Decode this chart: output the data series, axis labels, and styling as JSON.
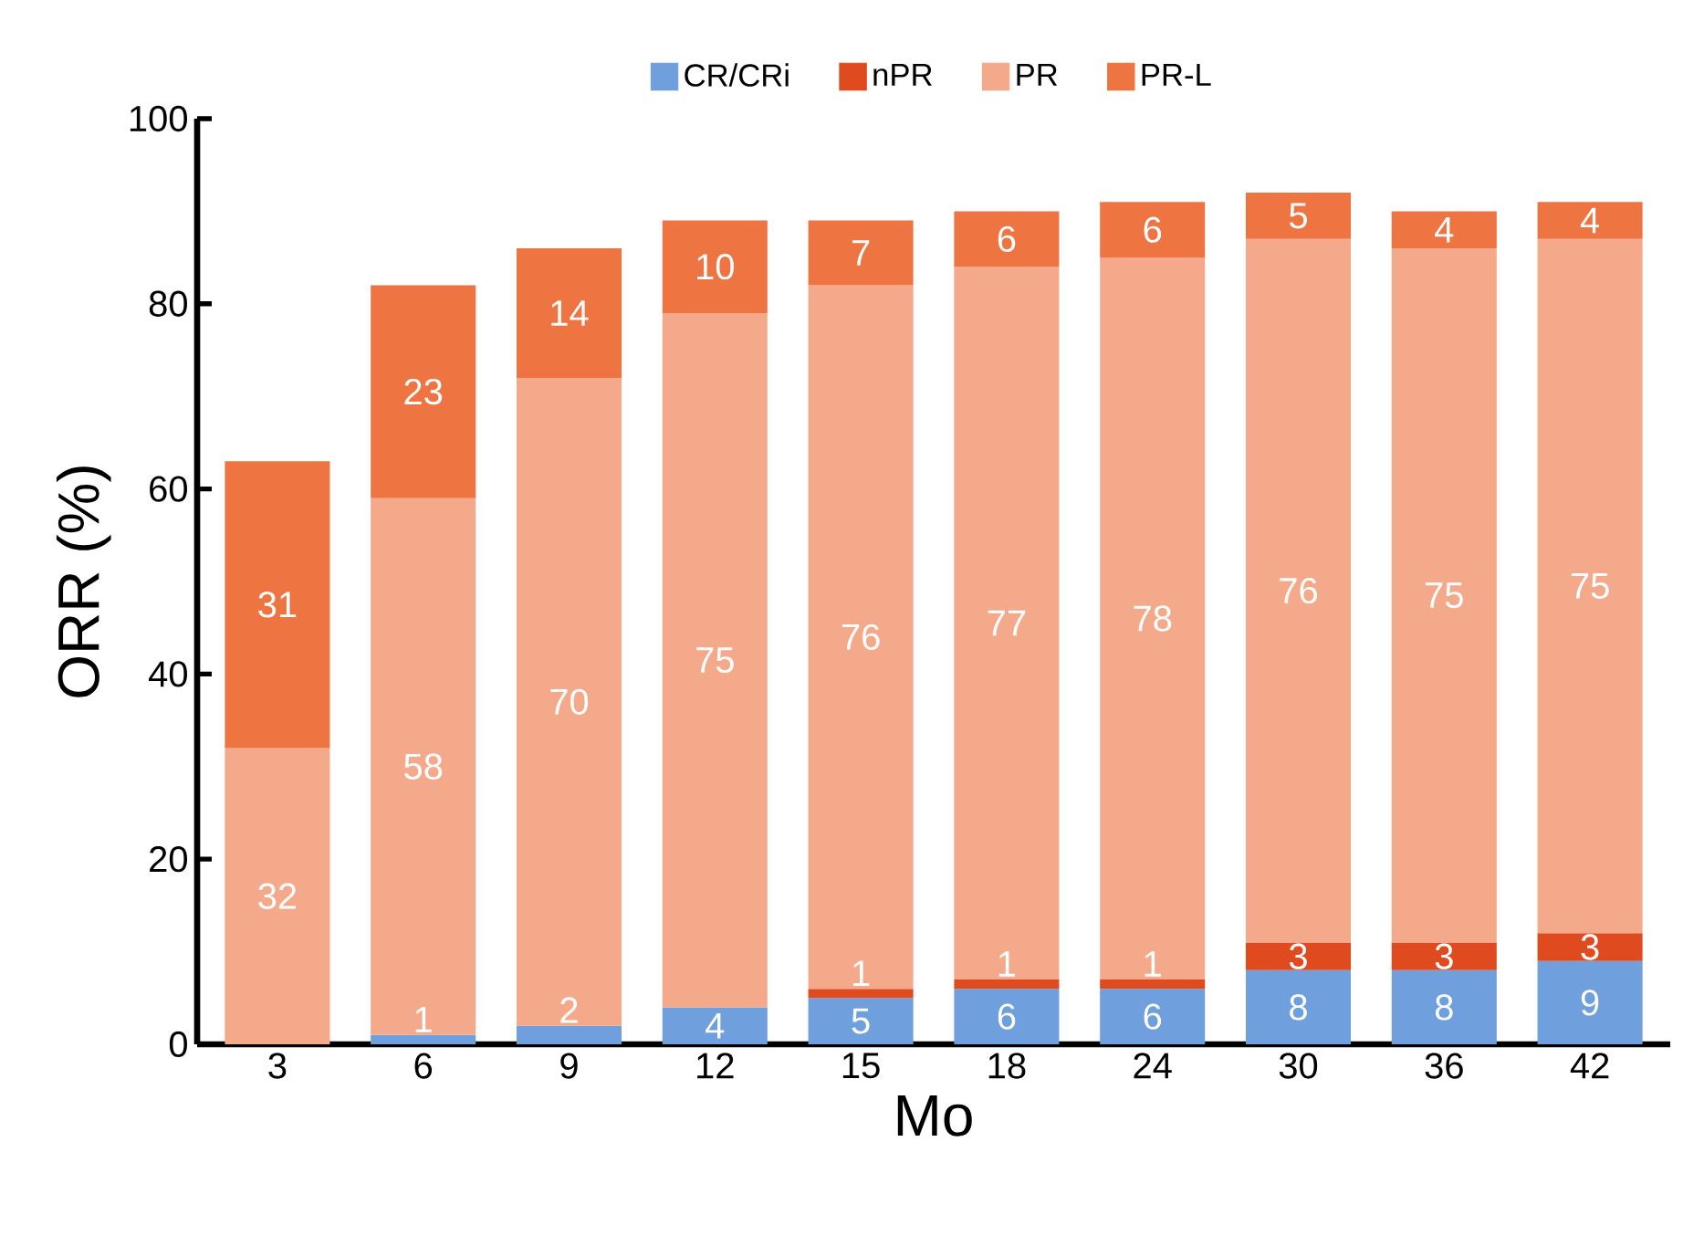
{
  "chart_data": {
    "type": "bar",
    "stacked": true,
    "xlabel": "Mo",
    "ylabel": "ORR (%)",
    "categories": [
      "3",
      "6",
      "9",
      "12",
      "15",
      "18",
      "24",
      "30",
      "36",
      "42"
    ],
    "series": [
      {
        "name": "CR/CRi",
        "color": "#6f9fdc",
        "values": [
          null,
          1,
          2,
          4,
          5,
          6,
          6,
          8,
          8,
          9
        ]
      },
      {
        "name": "nPR",
        "color": "#e04a1f",
        "values": [
          null,
          null,
          null,
          null,
          1,
          1,
          1,
          3,
          3,
          3
        ]
      },
      {
        "name": "PR",
        "color": "#f4a98a",
        "values": [
          32,
          58,
          70,
          75,
          76,
          77,
          78,
          76,
          75,
          75
        ]
      },
      {
        "name": "PR-L",
        "color": "#ee7442",
        "values": [
          31,
          23,
          14,
          10,
          7,
          6,
          6,
          5,
          4,
          4
        ]
      }
    ],
    "ylim": [
      0,
      100
    ],
    "yticks": [
      0,
      20,
      40,
      60,
      80,
      100
    ],
    "grid": false,
    "legend": "top",
    "data_labels": true
  }
}
